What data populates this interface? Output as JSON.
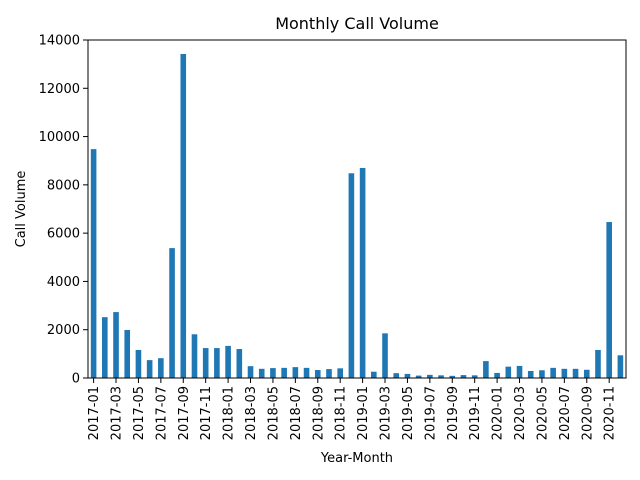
{
  "chart_data": {
    "type": "bar",
    "title": "Monthly Call Volume",
    "xlabel": "Year-Month",
    "ylabel": "Call Volume",
    "ylim": [
      0,
      14000
    ],
    "yticks": [
      0,
      2000,
      4000,
      6000,
      8000,
      10000,
      12000,
      14000
    ],
    "grid": false,
    "legend": "none",
    "bar_color": "#1f77b4",
    "tick_label_every": 2,
    "categories": [
      "2017-01",
      "2017-02",
      "2017-03",
      "2017-04",
      "2017-05",
      "2017-06",
      "2017-07",
      "2017-08",
      "2017-09",
      "2017-10",
      "2017-11",
      "2017-12",
      "2018-01",
      "2018-02",
      "2018-03",
      "2018-04",
      "2018-05",
      "2018-06",
      "2018-07",
      "2018-08",
      "2018-09",
      "2018-10",
      "2018-11",
      "2018-12",
      "2019-01",
      "2019-02",
      "2019-03",
      "2019-04",
      "2019-05",
      "2019-06",
      "2019-07",
      "2019-08",
      "2019-09",
      "2019-10",
      "2019-11",
      "2019-12",
      "2020-01",
      "2020-02",
      "2020-03",
      "2020-04",
      "2020-05",
      "2020-06",
      "2020-07",
      "2020-08",
      "2020-09",
      "2020-10",
      "2020-11",
      "2020-12"
    ],
    "values": [
      9480,
      2520,
      2730,
      1990,
      1160,
      740,
      820,
      5380,
      13420,
      1810,
      1240,
      1240,
      1330,
      1200,
      490,
      380,
      410,
      420,
      450,
      420,
      330,
      370,
      400,
      8480,
      8700,
      260,
      1850,
      200,
      170,
      100,
      130,
      110,
      90,
      120,
      110,
      700,
      210,
      470,
      500,
      290,
      320,
      420,
      380,
      380,
      340,
      1160,
      6460,
      940
    ]
  }
}
